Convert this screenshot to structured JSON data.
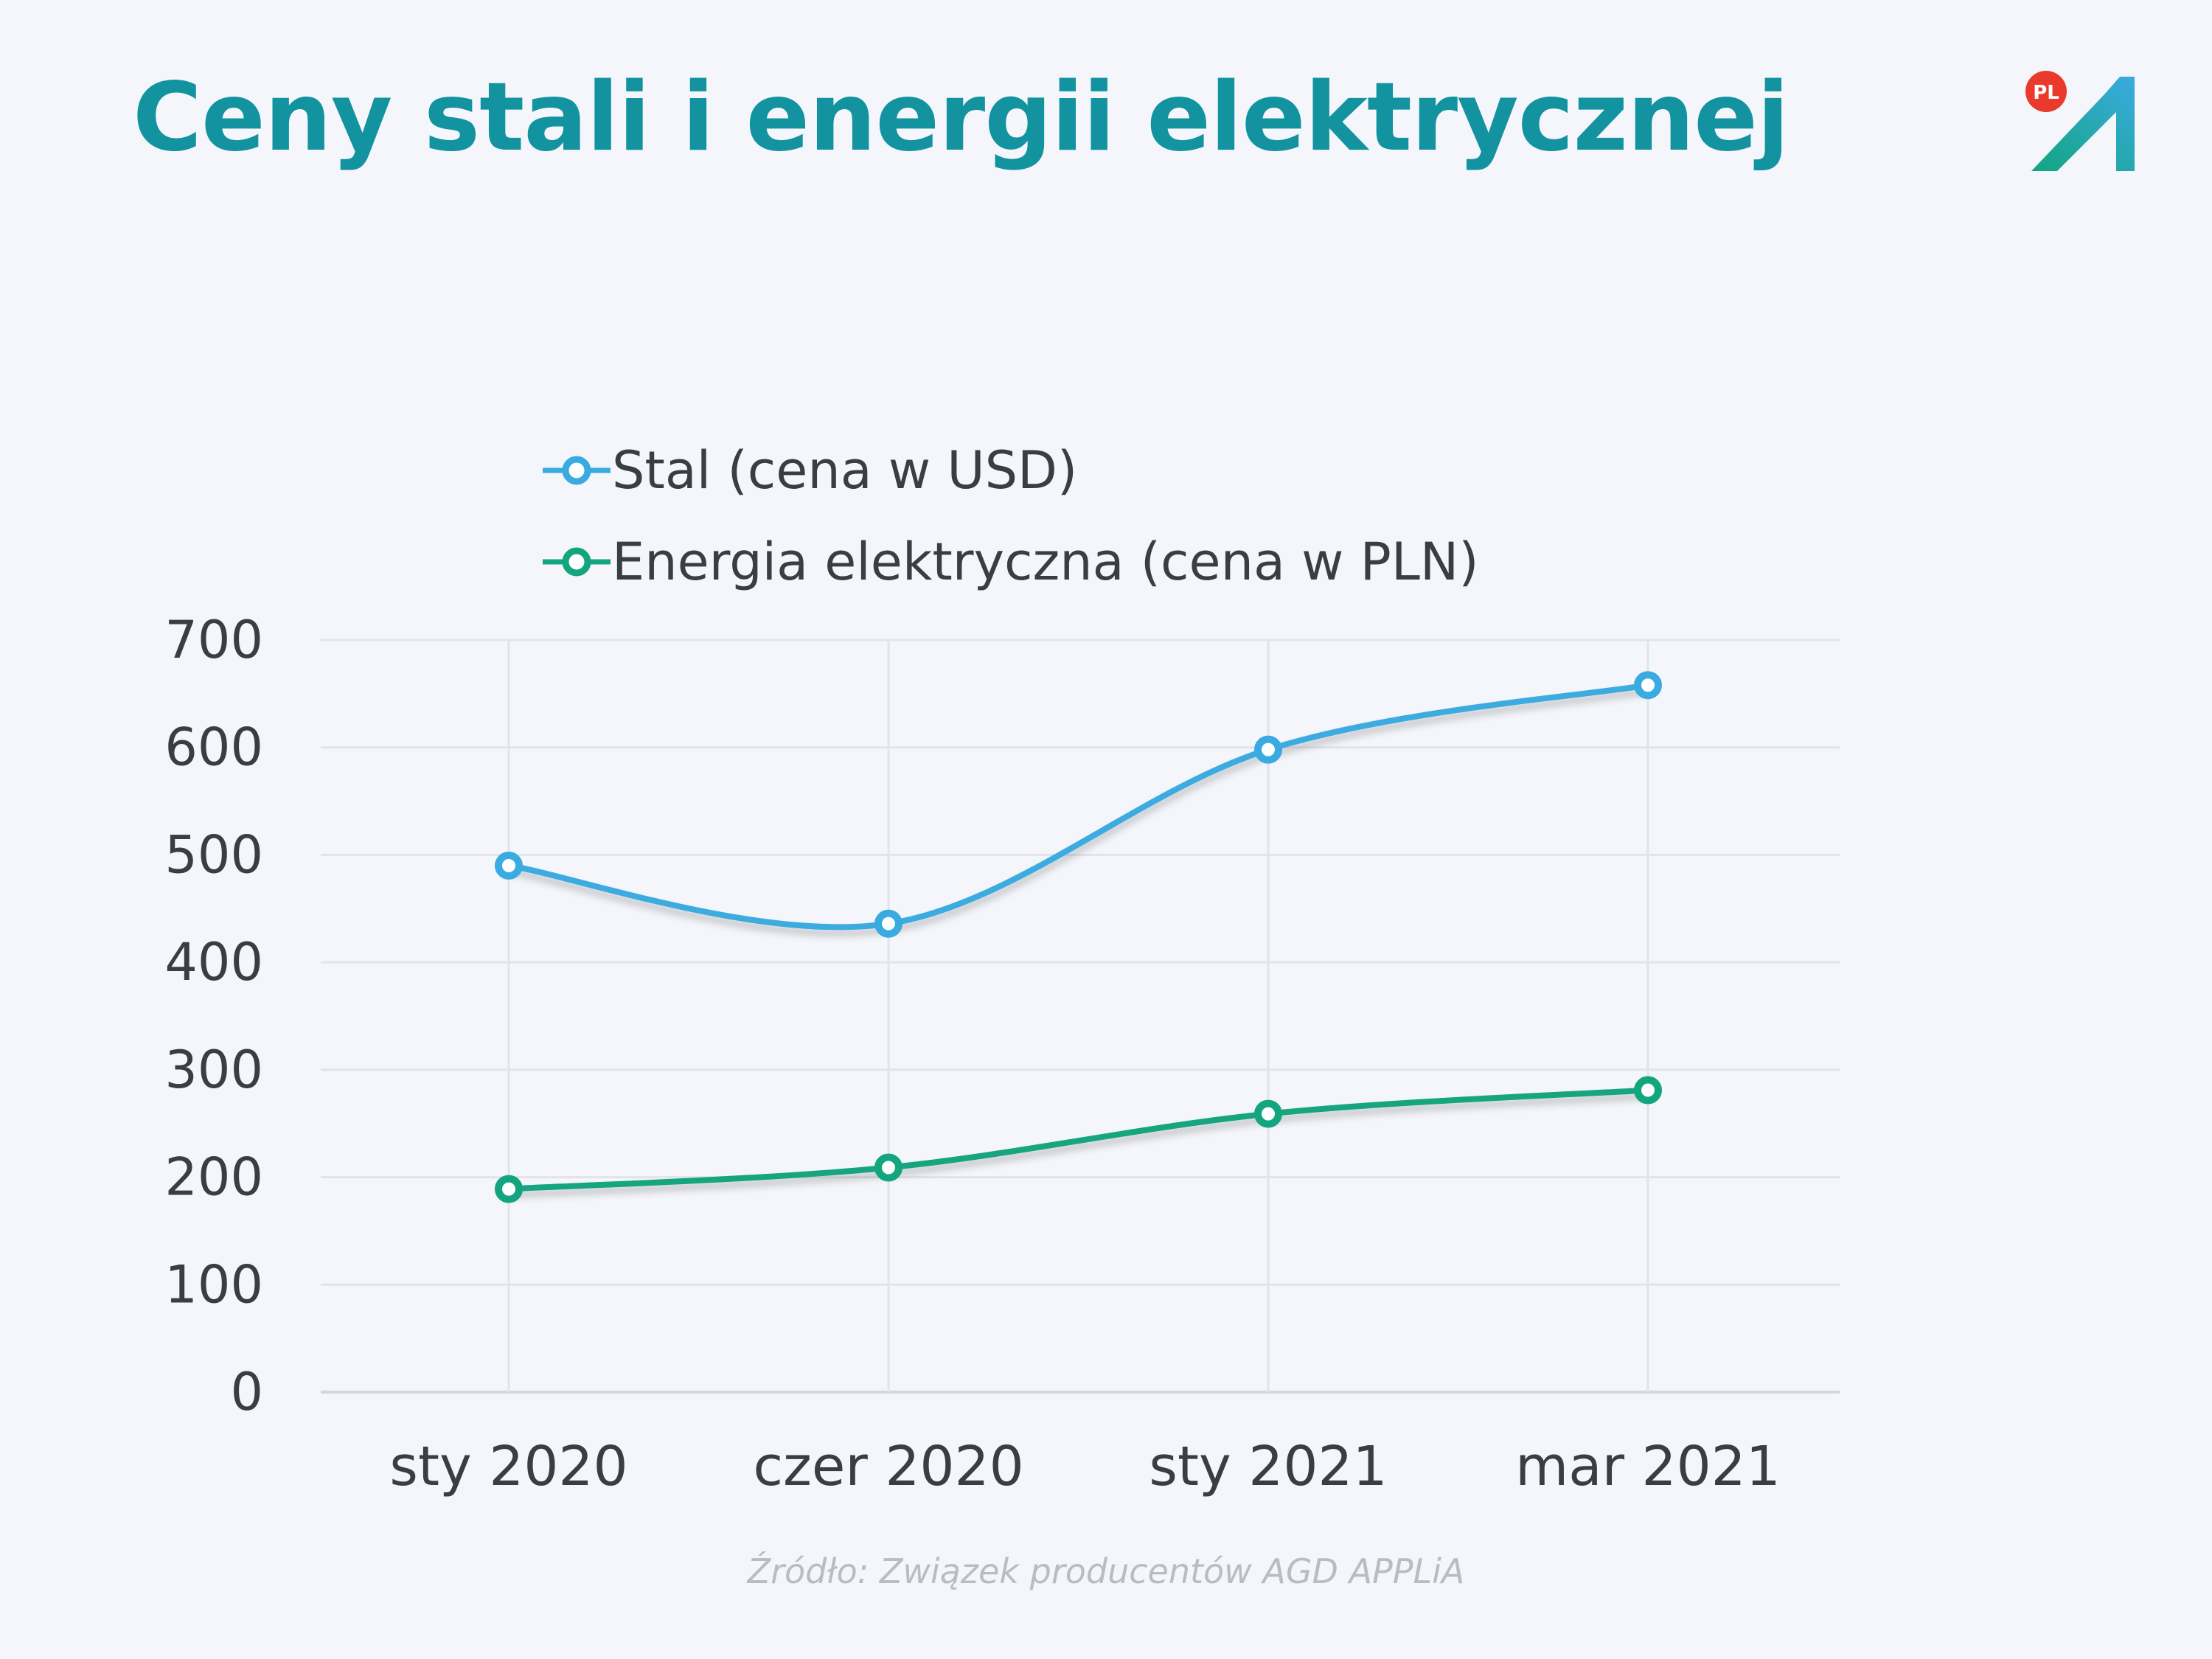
{
  "page": {
    "title": "Ceny stali i energii elektrycznej",
    "source": "Źródło: Związek producentów AGD APPLiA",
    "logo_badge": "PL"
  },
  "colors": {
    "title": "#12939f",
    "steel": "#3aabe0",
    "energy": "#12a57f",
    "grid": "#e1e4ea",
    "text": "#3a3d44",
    "source": "#b9bcc4",
    "badge": "#ea3a2b"
  },
  "chart_data": {
    "type": "line",
    "categories": [
      "sty 2020",
      "czer 2020",
      "sty 2021",
      "mar 2021"
    ],
    "ylim": [
      0,
      700
    ],
    "yticks": [
      0,
      100,
      200,
      300,
      400,
      500,
      600,
      700
    ],
    "grid": true,
    "legend_position": "top-left",
    "title": "",
    "xlabel": "",
    "ylabel": "",
    "series": [
      {
        "name": "Stal (cena w USD)",
        "values": [
          490,
          436,
          598,
          658
        ],
        "color": "#3aabe0"
      },
      {
        "name": "Energia elektryczna (cena w PLN)",
        "values": [
          189,
          209,
          259,
          281
        ],
        "color": "#12a57f"
      }
    ]
  }
}
